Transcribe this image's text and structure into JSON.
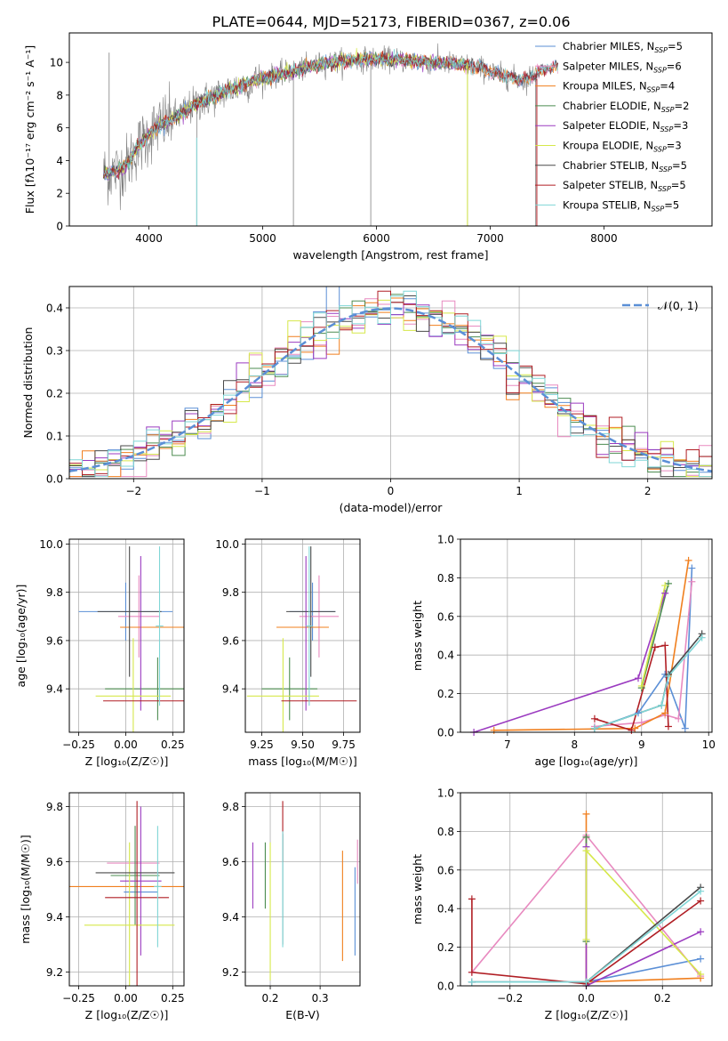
{
  "figure_title": "PLATE=0644, MJD=52173, FIBERID=0367, z=0.06",
  "colors": {
    "Chabrier MILES": "#5b8fd6",
    "Salpeter MILES": "#e88ac0",
    "Kroupa MILES": "#f07f1e",
    "Chabrier ELODIE": "#4c8c50",
    "Salpeter ELODIE": "#9b3bc0",
    "Kroupa ELODIE": "#d6e84a",
    "Chabrier STELIB": "#4a4a4a",
    "Salpeter STELIB": "#b01e24",
    "Kroupa STELIB": "#7fd6d6",
    "data": "#808080",
    "gaussian": "#5b8fd6"
  },
  "chart_data": [
    {
      "id": "spectrum",
      "type": "line",
      "title": "PLATE=0644, MJD=52173, FIBERID=0367, z=0.06",
      "xlabel": "wavelength [Angstrom, rest frame]",
      "ylabel": "Flux [fλ10⁻¹⁷ erg cm⁻² s⁻¹ A⁻¹]",
      "xlim": [
        3300,
        8950
      ],
      "ylim": [
        0,
        11.8
      ],
      "xticks": [
        4000,
        5000,
        6000,
        7000,
        8000
      ],
      "yticks": [
        0,
        2,
        4,
        6,
        8,
        10
      ],
      "legend_location": "top-right",
      "legend": [
        {
          "label": "Chabrier MILES, N_SSP=5",
          "base": "Chabrier MILES, N",
          "sub": "SSP",
          "tail": "=5"
        },
        {
          "label": "Salpeter MILES, N_SSP=6",
          "base": "Salpeter MILES, N",
          "sub": "SSP",
          "tail": "=6"
        },
        {
          "label": "Kroupa MILES, N_SSP=4",
          "base": "Kroupa MILES, N",
          "sub": "SSP",
          "tail": "=4"
        },
        {
          "label": "Chabrier ELODIE, N_SSP=2",
          "base": "Chabrier ELODIE, N",
          "sub": "SSP",
          "tail": "=2"
        },
        {
          "label": "Salpeter ELODIE, N_SSP=3",
          "base": "Salpeter ELODIE, N",
          "sub": "SSP",
          "tail": "=3"
        },
        {
          "label": "Kroupa ELODIE, N_SSP=3",
          "base": "Kroupa ELODIE, N",
          "sub": "SSP",
          "tail": "=3"
        },
        {
          "label": "Chabrier STELIB, N_SSP=5",
          "base": "Chabrier STELIB, N",
          "sub": "SSP",
          "tail": "=5"
        },
        {
          "label": "Salpeter STELIB, N_SSP=5",
          "base": "Salpeter STELIB, N",
          "sub": "SSP",
          "tail": "=5"
        },
        {
          "label": "Kroupa STELIB, N_SSP=5",
          "base": "Kroupa STELIB, N",
          "sub": "SSP",
          "tail": "=5"
        }
      ],
      "continuum": {
        "x": [
          3600,
          3700,
          3800,
          3900,
          4000,
          4100,
          4200,
          4300,
          4400,
          4500,
          4700,
          4900,
          5100,
          5300,
          5500,
          5700,
          5900,
          6100,
          6300,
          6500,
          6700,
          6900,
          7100,
          7300,
          7400,
          7500,
          7600,
          7700,
          7800,
          7900,
          8000,
          8100,
          8200,
          8300,
          8400,
          8500,
          8600,
          8700,
          8800
        ],
        "y": [
          3.2,
          3.3,
          3.7,
          4.8,
          5.6,
          6.2,
          6.5,
          6.9,
          7.4,
          7.7,
          8.3,
          8.8,
          9.2,
          9.5,
          9.9,
          10.1,
          10.2,
          10.2,
          10.1,
          10.0,
          9.9,
          9.7,
          9.2,
          8.9,
          9.3,
          9.6,
          9.8,
          10.1,
          10.2,
          10.1,
          9.9,
          9.6,
          9.7,
          9.5,
          9.6,
          9.3,
          9.4,
          9.2,
          9.3
        ]
      },
      "models_xrange": [
        3600,
        7600
      ],
      "data_xrange": [
        3600,
        7420
      ],
      "spikes": [
        {
          "x": 3650,
          "y": 10.6
        },
        {
          "x": 4420,
          "y": 0.0
        },
        {
          "x": 5270,
          "y": 0.0
        },
        {
          "x": 5950,
          "y": 0.0
        },
        {
          "x": 6800,
          "y": 0.0
        },
        {
          "x": 7400,
          "y": 0.0
        }
      ]
    },
    {
      "id": "residual_hist",
      "type": "histogram",
      "xlabel": "(data-model)/error",
      "ylabel": "Normed distribution",
      "xlim": [
        -2.5,
        2.5
      ],
      "ylim": [
        0,
        0.45
      ],
      "xticks": [
        -2,
        -1,
        0,
        1,
        2
      ],
      "yticks": [
        0.0,
        0.1,
        0.2,
        0.3,
        0.4
      ],
      "bin_width": 0.1,
      "legend_location": "top-right",
      "legend": [
        {
          "label": "N(0,1)",
          "text": "𝒩(0, 1)"
        }
      ],
      "gaussian": {
        "mean": 0,
        "sigma": 1
      }
    },
    {
      "id": "age_vs_Z",
      "type": "errorbar",
      "xlabel": "Z [log₁₀(Z/Z☉)]",
      "ylabel": "age  [log₁₀(age/yr)]",
      "xlim": [
        -0.3,
        0.31
      ],
      "ylim": [
        9.22,
        10.02
      ],
      "xticks": [
        -0.25,
        0.0,
        0.25
      ],
      "yticks": [
        9.4,
        9.6,
        9.8,
        10.0
      ],
      "points": [
        {
          "model": "Chabrier MILES",
          "x": 0.0,
          "xerr": 0.25,
          "y": 9.72,
          "yerr": 0.12
        },
        {
          "model": "Salpeter MILES",
          "x": 0.07,
          "xerr": 0.11,
          "y": 9.7,
          "yerr": 0.17
        },
        {
          "model": "Kroupa MILES",
          "x": 0.18,
          "xerr": 0.21,
          "y": 9.655,
          "yerr": 0.0
        },
        {
          "model": "Chabrier ELODIE",
          "x": 0.17,
          "xerr": 0.28,
          "y": 9.4,
          "yerr": 0.13
        },
        {
          "model": "Salpeter ELODIE",
          "x": 0.08,
          "xerr": 0.0,
          "y": 9.63,
          "yerr": 0.32
        },
        {
          "model": "Kroupa ELODIE",
          "x": 0.04,
          "xerr": 0.2,
          "y": 9.37,
          "yerr": 0.24
        },
        {
          "model": "Chabrier STELIB",
          "x": 0.02,
          "xerr": 0.17,
          "y": 9.72,
          "yerr": 0.27
        },
        {
          "model": "Salpeter STELIB",
          "x": 0.1,
          "xerr": 0.22,
          "y": 9.35,
          "yerr": 0.0
        },
        {
          "model": "Kroupa STELIB",
          "x": 0.18,
          "xerr": 0.02,
          "y": 9.66,
          "yerr": 0.33
        }
      ]
    },
    {
      "id": "age_vs_mass",
      "type": "errorbar",
      "xlabel": "mass [log₁₀(M/M☉)]",
      "ylabel": "",
      "xlim": [
        9.15,
        9.85
      ],
      "ylim": [
        9.22,
        10.02
      ],
      "xticks": [
        9.25,
        9.5,
        9.75
      ],
      "yticks": [
        9.4,
        9.6,
        9.8,
        10.0
      ],
      "points": [
        {
          "model": "Chabrier MILES",
          "x": 9.56,
          "xerr": 0.14,
          "y": 9.72,
          "yerr": 0.12
        },
        {
          "model": "Salpeter MILES",
          "x": 9.6,
          "xerr": 0.12,
          "y": 9.7,
          "yerr": 0.17
        },
        {
          "model": "Kroupa MILES",
          "x": 9.5,
          "xerr": 0.16,
          "y": 9.655,
          "yerr": 0.0
        },
        {
          "model": "Chabrier ELODIE",
          "x": 9.42,
          "xerr": 0.17,
          "y": 9.4,
          "yerr": 0.13
        },
        {
          "model": "Salpeter ELODIE",
          "x": 9.52,
          "xerr": 0.0,
          "y": 9.63,
          "yerr": 0.32
        },
        {
          "model": "Kroupa ELODIE",
          "x": 9.38,
          "xerr": 0.22,
          "y": 9.37,
          "yerr": 0.24
        },
        {
          "model": "Chabrier STELIB",
          "x": 9.55,
          "xerr": 0.15,
          "y": 9.72,
          "yerr": 0.27
        },
        {
          "model": "Salpeter STELIB",
          "x": 9.6,
          "xerr": 0.23,
          "y": 9.35,
          "yerr": 0.0
        },
        {
          "model": "Kroupa STELIB",
          "x": 9.54,
          "xerr": 0.02,
          "y": 9.66,
          "yerr": 0.33
        }
      ]
    },
    {
      "id": "massweight_vs_age",
      "type": "line",
      "xlabel": "age  [log₁₀(age/yr)]",
      "ylabel": "mass weight",
      "xlim": [
        6.3,
        10.05
      ],
      "ylim": [
        0,
        1
      ],
      "xticks": [
        7,
        8,
        9,
        10
      ],
      "yticks": [
        0.0,
        0.2,
        0.4,
        0.6,
        0.8,
        1.0
      ],
      "series": [
        {
          "model": "Chabrier MILES",
          "x": [
            8.3,
            8.95,
            9.35,
            9.65,
            9.75
          ],
          "y": [
            0.02,
            0.1,
            0.3,
            0.02,
            0.85
          ]
        },
        {
          "model": "Salpeter MILES",
          "x": [
            8.3,
            9.0,
            9.35,
            9.55,
            9.75
          ],
          "y": [
            0.03,
            0.05,
            0.09,
            0.07,
            0.78
          ]
        },
        {
          "model": "Kroupa MILES",
          "x": [
            6.8,
            8.9,
            9.35,
            9.7
          ],
          "y": [
            0.01,
            0.02,
            0.1,
            0.89
          ]
        },
        {
          "model": "Chabrier ELODIE",
          "x": [
            9.0,
            9.4
          ],
          "y": [
            0.23,
            0.77
          ]
        },
        {
          "model": "Salpeter ELODIE",
          "x": [
            6.5,
            8.95,
            9.35
          ],
          "y": [
            0.0,
            0.28,
            0.72
          ]
        },
        {
          "model": "Kroupa ELODIE",
          "x": [
            9.0,
            9.35
          ],
          "y": [
            0.24,
            0.76
          ]
        },
        {
          "model": "Chabrier STELIB",
          "x": [
            8.3,
            9.3,
            9.4,
            9.9
          ],
          "y": [
            0.02,
            0.14,
            0.3,
            0.51
          ]
        },
        {
          "model": "Salpeter STELIB",
          "x": [
            8.3,
            8.85,
            9.2,
            9.35,
            9.4
          ],
          "y": [
            0.07,
            0.01,
            0.44,
            0.45,
            0.03
          ]
        },
        {
          "model": "Kroupa STELIB",
          "x": [
            8.3,
            9.3,
            9.4,
            9.9
          ],
          "y": [
            0.02,
            0.14,
            0.29,
            0.49
          ]
        }
      ]
    },
    {
      "id": "mass_vs_Z",
      "type": "errorbar",
      "xlabel": "Z [log₁₀(Z/Z☉)]",
      "ylabel": "mass [log₁₀(M/M☉)]",
      "xlim": [
        -0.3,
        0.31
      ],
      "ylim": [
        9.15,
        9.85
      ],
      "xticks": [
        -0.25,
        0.0,
        0.25
      ],
      "yticks": [
        9.2,
        9.4,
        9.6,
        9.8
      ],
      "points": [
        {
          "model": "Chabrier MILES",
          "x": 0.08,
          "xerr": 0.09,
          "y": 9.49,
          "yerr": 0.0
        },
        {
          "model": "Salpeter MILES",
          "x": 0.04,
          "xerr": 0.14,
          "y": 9.595,
          "yerr": 0.0
        },
        {
          "model": "Kroupa MILES",
          "x": -0.02,
          "xerr": 0.33,
          "y": 9.51,
          "yerr": 0.0
        },
        {
          "model": "Chabrier ELODIE",
          "x": 0.05,
          "xerr": 0.13,
          "y": 9.55,
          "yerr": 0.18
        },
        {
          "model": "Salpeter ELODIE",
          "x": 0.08,
          "xerr": 0.11,
          "y": 9.53,
          "yerr": 0.27
        },
        {
          "model": "Kroupa ELODIE",
          "x": 0.02,
          "xerr": 0.24,
          "y": 9.37,
          "yerr": 0.3
        },
        {
          "model": "Chabrier STELIB",
          "x": 0.05,
          "xerr": 0.21,
          "y": 9.56,
          "yerr": 0.0
        },
        {
          "model": "Salpeter STELIB",
          "x": 0.06,
          "xerr": 0.17,
          "y": 9.47,
          "yerr": 0.35
        },
        {
          "model": "Kroupa STELIB",
          "x": 0.17,
          "xerr": 0.02,
          "y": 9.51,
          "yerr": 0.22
        }
      ]
    },
    {
      "id": "mass_vs_ebv",
      "type": "errorbar",
      "xlabel": "E(B-V)",
      "ylabel": "",
      "xlim": [
        0.15,
        0.38
      ],
      "ylim": [
        9.15,
        9.85
      ],
      "xticks": [
        0.2,
        0.3
      ],
      "yticks": [
        9.2,
        9.4,
        9.6,
        9.8
      ],
      "points": [
        {
          "model": "Chabrier MILES",
          "x": 0.37,
          "xerr": 0.0,
          "y": 9.42,
          "yerr": 0.16
        },
        {
          "model": "Salpeter MILES",
          "x": 0.375,
          "xerr": 0.0,
          "y": 9.6,
          "yerr": 0.08
        },
        {
          "model": "Kroupa MILES",
          "x": 0.345,
          "xerr": 0.0,
          "y": 9.44,
          "yerr": 0.2
        },
        {
          "model": "Chabrier ELODIE",
          "x": 0.19,
          "xerr": 0.0,
          "y": 9.55,
          "yerr": 0.12
        },
        {
          "model": "Salpeter ELODIE",
          "x": 0.165,
          "xerr": 0.0,
          "y": 9.55,
          "yerr": 0.12
        },
        {
          "model": "Kroupa ELODIE",
          "x": 0.2,
          "xerr": 0.0,
          "y": 9.42,
          "yerr": 0.25
        },
        {
          "model": "Chabrier STELIB",
          "x": 0.225,
          "xerr": 0.0,
          "y": 9.5,
          "yerr": 0.2
        },
        {
          "model": "Salpeter STELIB",
          "x": 0.225,
          "xerr": 0.0,
          "y": 9.71,
          "yerr": 0.11
        },
        {
          "model": "Kroupa STELIB",
          "x": 0.225,
          "xerr": 0.0,
          "y": 9.5,
          "yerr": 0.21
        }
      ]
    },
    {
      "id": "massweight_vs_Z",
      "type": "line",
      "xlabel": "Z [log₁₀(Z/Z☉)]",
      "ylabel": "mass weight",
      "xlim": [
        -0.33,
        0.33
      ],
      "ylim": [
        0,
        1
      ],
      "xticks": [
        -0.2,
        0.0,
        0.2
      ],
      "yticks": [
        0.0,
        0.2,
        0.4,
        0.6,
        0.8,
        1.0
      ],
      "series": [
        {
          "model": "Chabrier MILES",
          "x": [
            -0.3,
            0.0,
            0.3
          ],
          "y": [
            0.02,
            0.02,
            0.14
          ]
        },
        {
          "model": "Salpeter MILES",
          "x": [
            -0.3,
            0.0,
            0.3
          ],
          "y": [
            0.07,
            0.78,
            0.05
          ]
        },
        {
          "model": "Kroupa MILES",
          "x": [
            0.0,
            0.0,
            0.3
          ],
          "y": [
            0.89,
            0.02,
            0.04
          ]
        },
        {
          "model": "Chabrier ELODIE",
          "x": [
            0.0,
            0.0
          ],
          "y": [
            0.23,
            0.77
          ]
        },
        {
          "model": "Salpeter ELODIE",
          "x": [
            0.0,
            0.0,
            0.3
          ],
          "y": [
            0.72,
            0.0,
            0.28
          ]
        },
        {
          "model": "Kroupa ELODIE",
          "x": [
            0.0,
            0.0,
            0.3
          ],
          "y": [
            0.24,
            0.7,
            0.06
          ]
        },
        {
          "model": "Chabrier STELIB",
          "x": [
            -0.3,
            0.0,
            0.3
          ],
          "y": [
            0.02,
            0.02,
            0.51
          ]
        },
        {
          "model": "Salpeter STELIB",
          "x": [
            -0.3,
            -0.3,
            0.0,
            0.3
          ],
          "y": [
            0.45,
            0.07,
            0.01,
            0.44
          ]
        },
        {
          "model": "Kroupa STELIB",
          "x": [
            -0.3,
            0.0,
            0.3
          ],
          "y": [
            0.02,
            0.02,
            0.49
          ]
        }
      ]
    }
  ]
}
